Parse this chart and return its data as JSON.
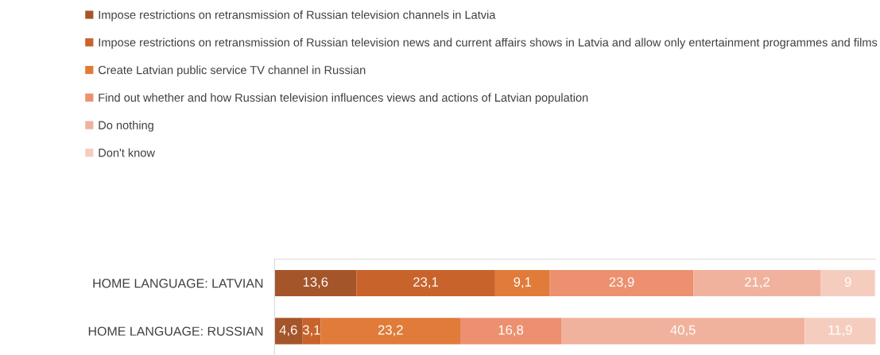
{
  "chart_data": {
    "type": "bar",
    "orientation": "horizontal",
    "stacked": true,
    "categories": [
      "HOME LANGUAGE: LATVIAN",
      "HOME LANGUAGE: RUSSIAN"
    ],
    "series": [
      {
        "name": "Impose restrictions on retransmission of Russian television channels in Latvia",
        "color": "#a5552a",
        "values": [
          13.6,
          4.6
        ],
        "value_labels": [
          "13,6",
          "4,6"
        ]
      },
      {
        "name": "Impose restrictions on retransmission of Russian television news and current affairs shows in Latvia and allow only entertainment programmes and films",
        "color": "#c8632b",
        "values": [
          23.1,
          3.1
        ],
        "value_labels": [
          "23,1",
          "3,1"
        ]
      },
      {
        "name": "Create Latvian public service TV channel in Russian",
        "color": "#e07b39",
        "values": [
          9.1,
          23.2
        ],
        "value_labels": [
          "9,1",
          "23,2"
        ]
      },
      {
        "name": "Find out whether and how Russian television influences views and actions of Latvian population",
        "color": "#ec9070",
        "values": [
          23.9,
          16.8
        ],
        "value_labels": [
          "23,9",
          "16,8"
        ]
      },
      {
        "name": "Do nothing",
        "color": "#f0b29c",
        "values": [
          21.2,
          40.5
        ],
        "value_labels": [
          "21,2",
          "40,5"
        ]
      },
      {
        "name": "Don't know",
        "color": "#f5cdbf",
        "values": [
          9,
          11.9
        ],
        "value_labels": [
          "9",
          "11,9"
        ]
      }
    ],
    "xlim": [
      0,
      100
    ],
    "tick_labels": "y",
    "legend": "top",
    "grid": false
  }
}
